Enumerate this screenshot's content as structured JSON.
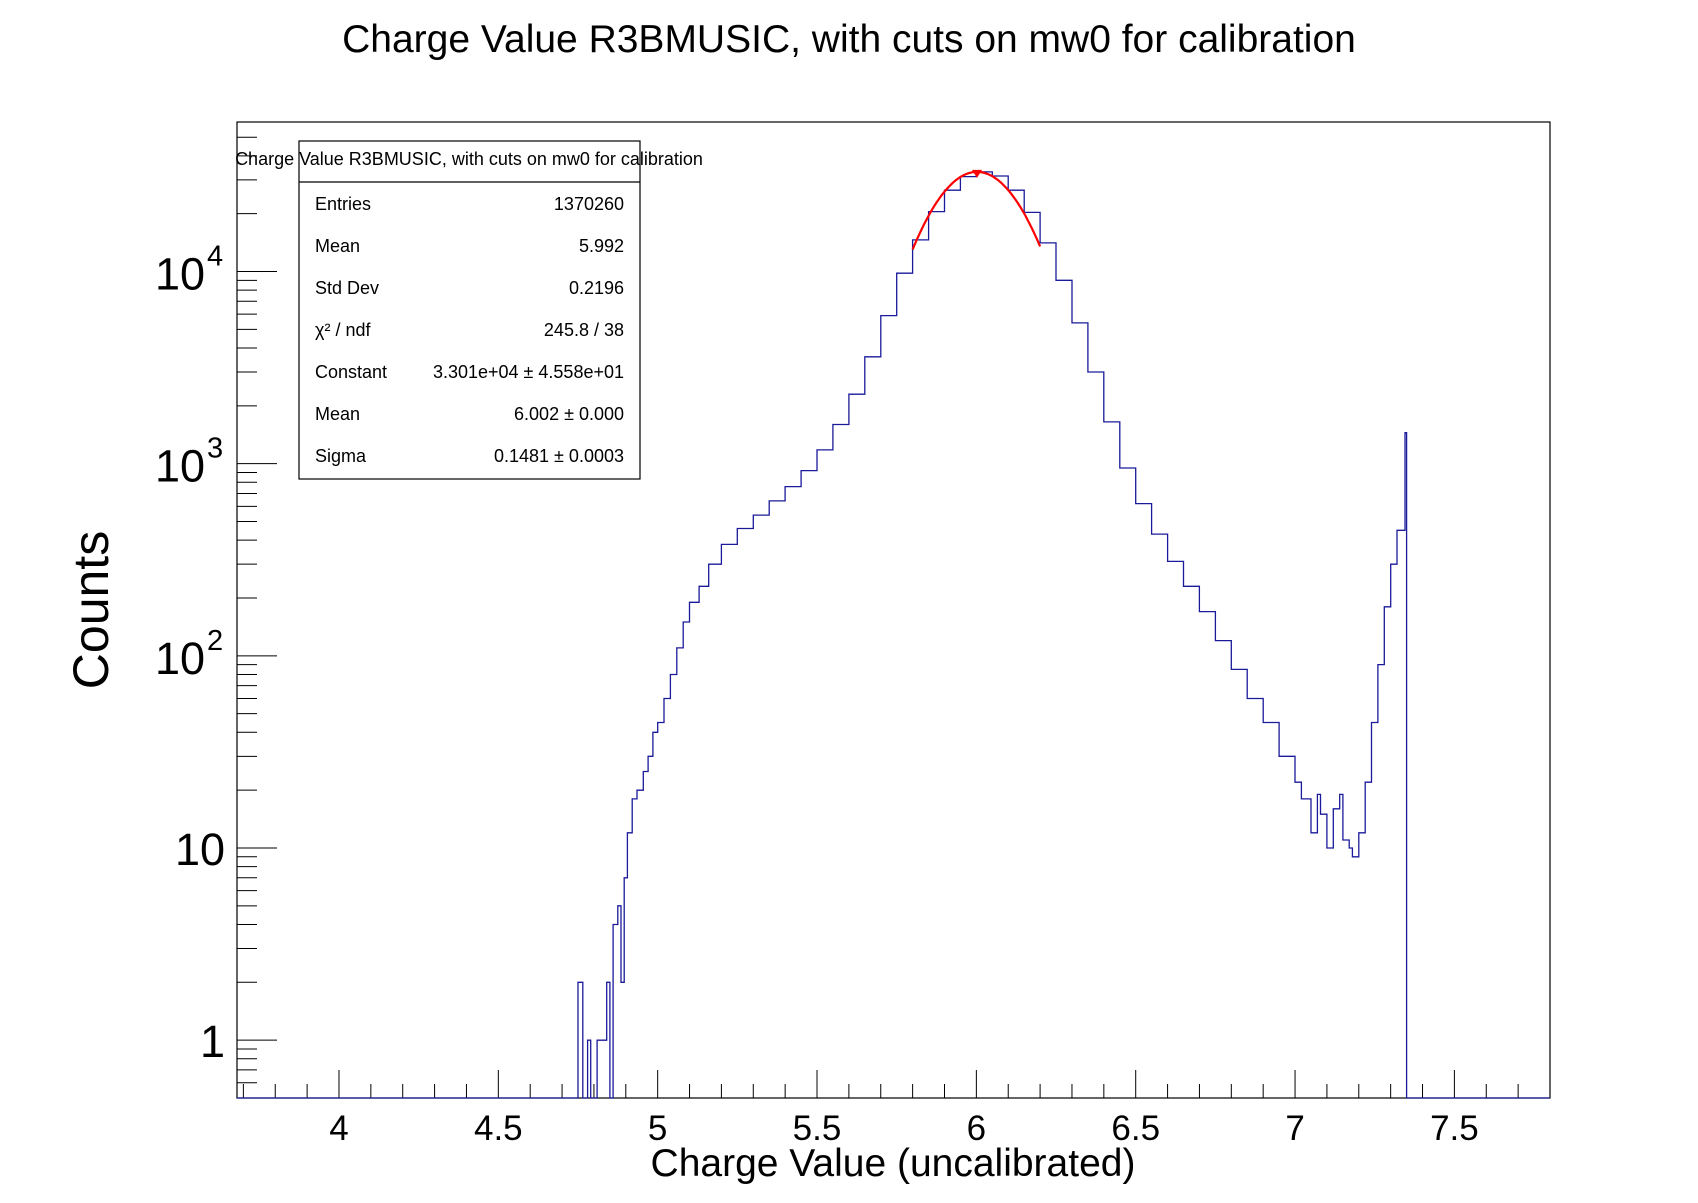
{
  "colors": {
    "histogram": "#1a1a9a",
    "fit": "#ff0000",
    "frame": "#000000",
    "background": "#ffffff"
  },
  "chart_data": {
    "type": "histogram",
    "title": "Charge Value R3BMUSIC, with cuts on mw0 for calibration",
    "xlabel": "Charge Value (uncalibrated)",
    "ylabel": "Counts",
    "xlim": [
      3.68,
      7.8
    ],
    "ylim": [
      0.5,
      60000
    ],
    "yscale": "log",
    "x_ticks": [
      {
        "value": 4,
        "label": "4"
      },
      {
        "value": 4.5,
        "label": "4.5"
      },
      {
        "value": 5,
        "label": "5"
      },
      {
        "value": 5.5,
        "label": "5.5"
      },
      {
        "value": 6,
        "label": "6"
      },
      {
        "value": 6.5,
        "label": "6.5"
      },
      {
        "value": 7,
        "label": "7"
      },
      {
        "value": 7.5,
        "label": "7.5"
      }
    ],
    "y_ticks": [
      {
        "value": 1,
        "base": "1",
        "exp": ""
      },
      {
        "value": 10,
        "base": "10",
        "exp": ""
      },
      {
        "value": 100,
        "base": "10",
        "exp": "2"
      },
      {
        "value": 1000,
        "base": "10",
        "exp": "3"
      },
      {
        "value": 10000,
        "base": "10",
        "exp": "4"
      }
    ],
    "series": [
      {
        "name": "histogram",
        "points": [
          [
            4.745,
            0.5
          ],
          [
            4.75,
            2.0
          ],
          [
            4.765,
            0.5
          ],
          [
            4.78,
            1.0
          ],
          [
            4.79,
            0.5
          ],
          [
            4.81,
            1.0
          ],
          [
            4.83,
            1.0
          ],
          [
            4.84,
            2.0
          ],
          [
            4.85,
            0.5
          ],
          [
            4.86,
            4.0
          ],
          [
            4.875,
            5.0
          ],
          [
            4.885,
            2.0
          ],
          [
            4.895,
            7.0
          ],
          [
            4.905,
            12.0
          ],
          [
            4.92,
            18.0
          ],
          [
            4.935,
            20.0
          ],
          [
            4.955,
            25.0
          ],
          [
            4.97,
            30.0
          ],
          [
            4.985,
            40.0
          ],
          [
            5.0,
            45.0
          ],
          [
            5.02,
            60.0
          ],
          [
            5.04,
            80.0
          ],
          [
            5.06,
            110.0
          ],
          [
            5.08,
            150.0
          ],
          [
            5.1,
            190.0
          ],
          [
            5.13,
            230.0
          ],
          [
            5.16,
            300.0
          ],
          [
            5.2,
            380.0
          ],
          [
            5.25,
            460.0
          ],
          [
            5.3,
            540.0
          ],
          [
            5.35,
            640.0
          ],
          [
            5.4,
            760.0
          ],
          [
            5.45,
            920.0
          ],
          [
            5.5,
            1180.0
          ],
          [
            5.55,
            1600.0
          ],
          [
            5.6,
            2300.0
          ],
          [
            5.65,
            3600.0
          ],
          [
            5.7,
            5900.0
          ],
          [
            5.75,
            9800.0
          ],
          [
            5.8,
            14600.0
          ],
          [
            5.85,
            20500.0
          ],
          [
            5.9,
            26500.0
          ],
          [
            5.95,
            31200.0
          ],
          [
            6.0,
            33000.0
          ],
          [
            6.05,
            31400.0
          ],
          [
            6.1,
            26500.0
          ],
          [
            6.15,
            20300.0
          ],
          [
            6.2,
            14100.0
          ],
          [
            6.25,
            9000.0
          ],
          [
            6.3,
            5400.0
          ],
          [
            6.35,
            3000.0
          ],
          [
            6.4,
            1650.0
          ],
          [
            6.45,
            950.0
          ],
          [
            6.5,
            620.0
          ],
          [
            6.55,
            430.0
          ],
          [
            6.6,
            310.0
          ],
          [
            6.65,
            230.0
          ],
          [
            6.7,
            170.0
          ],
          [
            6.75,
            120.0
          ],
          [
            6.8,
            85.0
          ],
          [
            6.85,
            60.0
          ],
          [
            6.9,
            45.0
          ],
          [
            6.95,
            30.0
          ],
          [
            7.0,
            22.0
          ],
          [
            7.02,
            18.0
          ],
          [
            7.05,
            12.0
          ],
          [
            7.07,
            19.0
          ],
          [
            7.08,
            15.0
          ],
          [
            7.1,
            10.0
          ],
          [
            7.12,
            16.0
          ],
          [
            7.14,
            19.0
          ],
          [
            7.15,
            11.0
          ],
          [
            7.17,
            10.0
          ],
          [
            7.18,
            9.0
          ],
          [
            7.2,
            12.0
          ],
          [
            7.22,
            22.0
          ],
          [
            7.24,
            45.0
          ],
          [
            7.26,
            90.0
          ],
          [
            7.28,
            180.0
          ],
          [
            7.3,
            300.0
          ],
          [
            7.32,
            450.0
          ],
          [
            7.345,
            1450.0
          ],
          [
            7.35,
            0.5
          ]
        ]
      },
      {
        "name": "gaus fit",
        "constant": 33010,
        "mean": 6.002,
        "sigma": 0.1481,
        "xrange": [
          5.8,
          6.2
        ]
      }
    ]
  },
  "stats_box": {
    "header": "Charge Value R3BMUSIC, with cuts on mw0 for calibration",
    "rows": [
      {
        "label": "Entries",
        "value": "1370260"
      },
      {
        "label": "Mean",
        "value": "5.992"
      },
      {
        "label": "Std Dev",
        "value": "0.2196"
      },
      {
        "label": "χ² / ndf",
        "value": "245.8 / 38"
      },
      {
        "label": "Constant",
        "value": "3.301e+04 ± 4.558e+01"
      },
      {
        "label": "Mean",
        "value": "6.002 ± 0.000"
      },
      {
        "label": "Sigma",
        "value": "0.1481 ± 0.0003"
      }
    ]
  }
}
